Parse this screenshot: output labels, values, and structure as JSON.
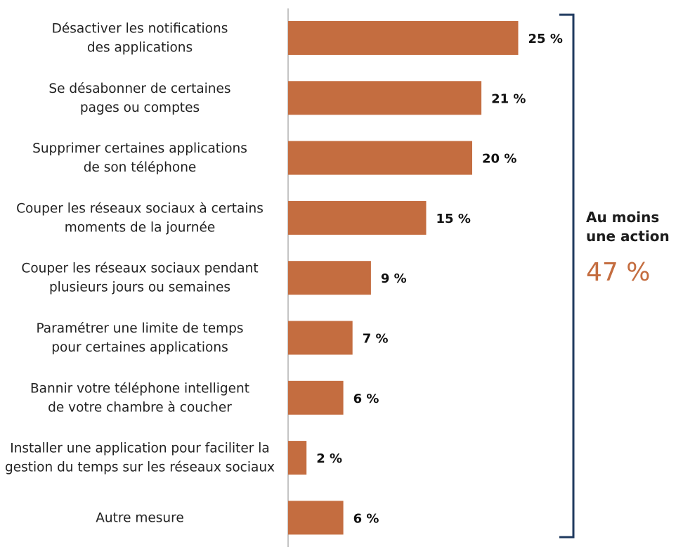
{
  "chart_data": {
    "type": "bar",
    "orientation": "horizontal",
    "categories": [
      [
        "Désactiver les notifications",
        "des applications"
      ],
      [
        "Se désabonner de certaines",
        "pages ou comptes"
      ],
      [
        "Supprimer certaines applications",
        "de son téléphone"
      ],
      [
        "Couper les réseaux sociaux à certains",
        "moments de la journée"
      ],
      [
        "Couper les réseaux sociaux pendant",
        "plusieurs jours ou semaines"
      ],
      [
        "Paramétrer une limite de temps",
        "pour certaines applications"
      ],
      [
        "Bannir votre téléphone intelligent",
        "de votre chambre à coucher"
      ],
      [
        "Installer une application pour faciliter la",
        "gestion du temps sur les réseaux sociaux"
      ],
      [
        "Autre mesure"
      ]
    ],
    "values": [
      25,
      21,
      20,
      15,
      9,
      7,
      6,
      2,
      6
    ],
    "value_labels": [
      "25 %",
      "21 %",
      "20 %",
      "15 %",
      "9 %",
      "7 %",
      "6 %",
      "2 %",
      "6 %"
    ],
    "xlim": [
      0,
      30
    ],
    "bar_color": "#c46d40",
    "bracket_color": "#1f3a5f",
    "axis_color": "#b0b0b0"
  },
  "summary": {
    "title_line1": "Au moins",
    "title_line2": "une action",
    "value": "47 %"
  }
}
